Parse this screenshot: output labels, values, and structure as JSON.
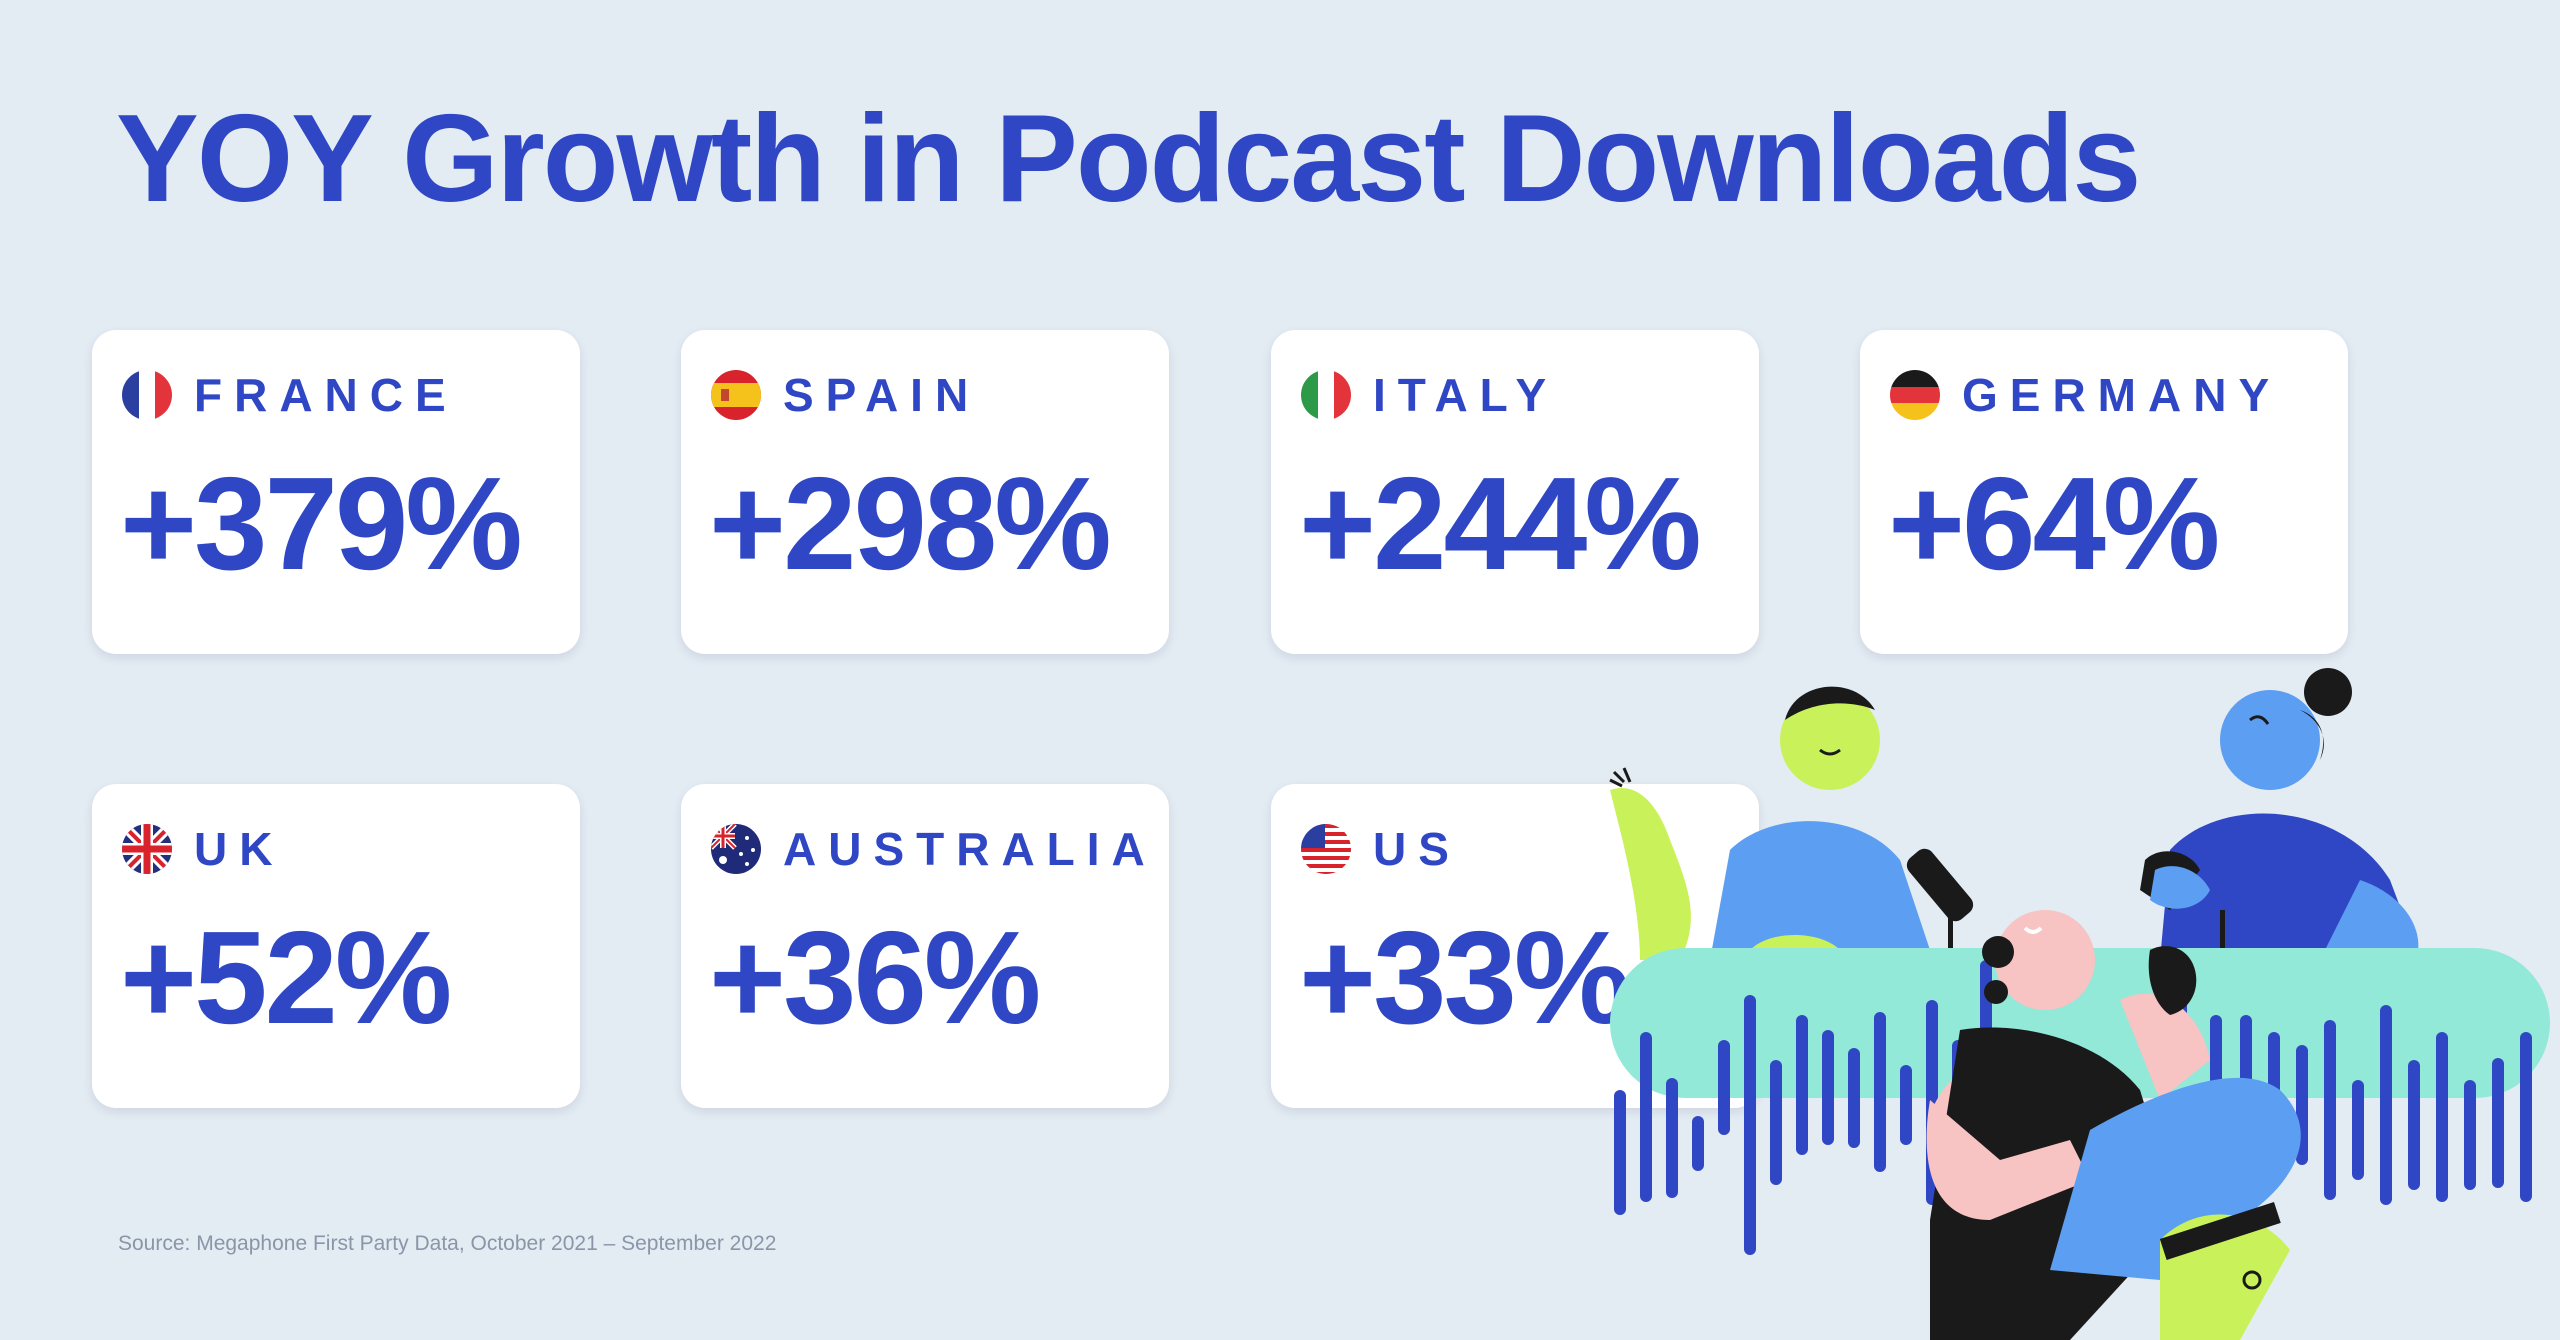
{
  "title": "YOY Growth in Podcast Downloads",
  "source": "Source: Megaphone First Party Data, October 2021 – September 2022",
  "colors": {
    "accent": "#2f47c4",
    "background": "#e3ebf3",
    "card": "#ffffff"
  },
  "chart_data": {
    "type": "table",
    "title": "YOY Growth in Podcast Downloads",
    "categories": [
      "FRANCE",
      "SPAIN",
      "ITALY",
      "GERMANY",
      "UK",
      "AUSTRALIA",
      "US"
    ],
    "values": [
      379,
      298,
      244,
      64,
      52,
      36,
      33
    ],
    "labels": [
      "+379%",
      "+298%",
      "+244%",
      "+64%",
      "+52%",
      "+36%",
      "+33%"
    ],
    "flags": [
      "france-flag-icon",
      "spain-flag-icon",
      "italy-flag-icon",
      "germany-flag-icon",
      "uk-flag-icon",
      "australia-flag-icon",
      "us-flag-icon"
    ]
  }
}
